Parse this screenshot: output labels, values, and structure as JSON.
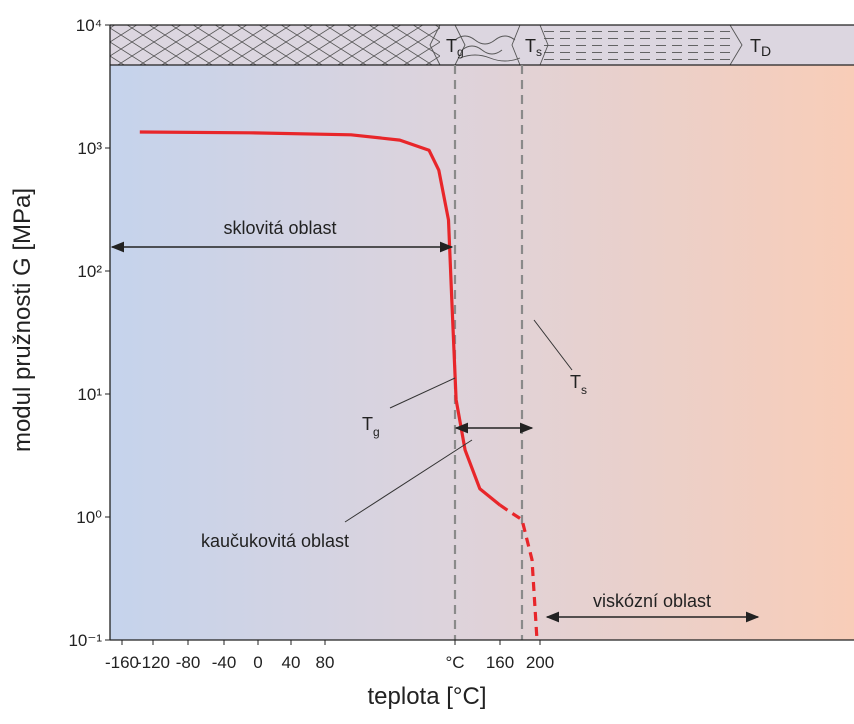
{
  "chart_data": {
    "type": "line",
    "x_label": "teplota [°C]",
    "y_label": "modul pružnosti G [MPa]",
    "xlim": [
      -175,
      514
    ],
    "ylim": [
      0.1,
      10000
    ],
    "yscale": "log",
    "xticks": [
      -160,
      -120,
      -80,
      -40,
      0,
      40,
      80,
      {
        "value": 120,
        "label": "°C"
      },
      160,
      200
    ],
    "yticks": [
      {
        "value": 0.1,
        "label": "10⁻¹"
      },
      {
        "value": 1,
        "label": "10⁰"
      },
      {
        "value": 10,
        "label": "10¹"
      },
      {
        "value": 100,
        "label": "10²"
      },
      {
        "value": 1000,
        "label": "10³"
      },
      {
        "value": 10000,
        "label": "10⁴"
      }
    ],
    "series": [
      {
        "color": "#e8262a",
        "style": "solid",
        "x": [
          -137,
          -10,
          88,
          103,
          112,
          115,
          118,
          119,
          121,
          129,
          142,
          160
        ],
        "values": [
          1350,
          1330,
          1280,
          1160,
          960,
          660,
          260,
          58,
          9,
          3.5,
          1.7,
          1.25
        ]
      },
      {
        "color": "#e8262a",
        "style": "dashed",
        "x": [
          160,
          170,
          182,
          192,
          197
        ],
        "values": [
          1.25,
          1.1,
          0.95,
          0.45,
          0.1
        ]
      }
    ],
    "reference_lines": [
      {
        "value": 120,
        "color": "#8a8a8a"
      },
      {
        "value": 182,
        "color": "#8a8a8a"
      }
    ],
    "band_labels": [
      {
        "text": "T",
        "sub": "g"
      },
      {
        "text": "T",
        "sub": "s"
      },
      {
        "text": "T",
        "sub": "D"
      }
    ],
    "annotations": {
      "glassy": "sklovitá oblast",
      "rubbery": "kaučukovitá oblast",
      "viscous": "viskózní oblast",
      "tg": {
        "text": "T",
        "sub": "g"
      },
      "ts": {
        "text": "T",
        "sub": "s"
      }
    }
  }
}
